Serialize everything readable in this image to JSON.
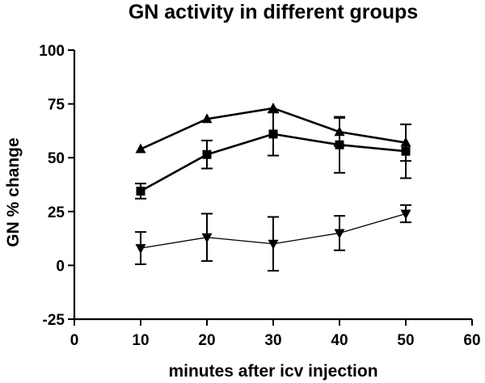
{
  "chart_data": {
    "type": "line",
    "title": "GN activity in different groups",
    "xlabel": "minutes after icv injection",
    "ylabel": "GN % change",
    "xlim": [
      0,
      60
    ],
    "ylim": [
      -25,
      100
    ],
    "x_ticks": [
      0,
      10,
      20,
      30,
      40,
      50,
      60
    ],
    "y_ticks": [
      -25,
      0,
      25,
      50,
      75,
      100
    ],
    "grid": false,
    "legend": "none",
    "x": [
      10,
      20,
      30,
      40,
      50
    ],
    "series": [
      {
        "marker": "triangle-up",
        "line_width": "thick",
        "values": [
          54,
          68,
          73,
          62,
          57
        ],
        "error": [
          0,
          0,
          0,
          0,
          0
        ]
      },
      {
        "marker": "square",
        "line_width": "thick",
        "values": [
          34.5,
          51.5,
          61,
          56,
          53
        ],
        "error": [
          3.5,
          6.5,
          10,
          13,
          12.5
        ]
      },
      {
        "marker": "triangle-down",
        "line_width": "thin",
        "values": [
          8,
          13,
          10,
          15,
          24
        ],
        "error": [
          7.5,
          11,
          12.5,
          8,
          4
        ]
      }
    ],
    "extra_error_bars": [
      {
        "x": 40,
        "center": 62,
        "half": 6.5
      },
      {
        "x": 50,
        "center": 57,
        "half": 8.5
      }
    ]
  }
}
